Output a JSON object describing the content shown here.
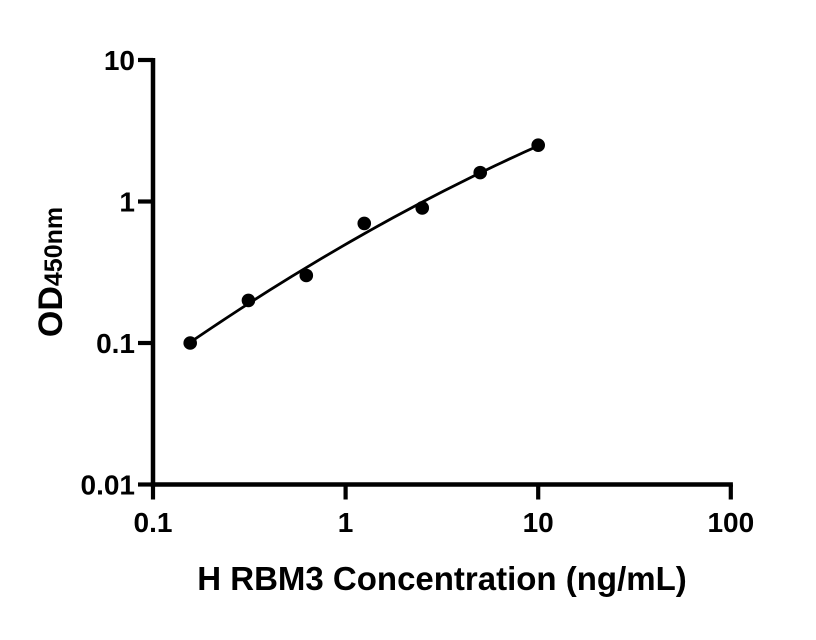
{
  "figure": {
    "background": "#ffffff"
  },
  "chart_data": {
    "type": "scatter",
    "title": "",
    "xlabel": "H RBM3 Concentration (ng/mL)",
    "ylabel": "OD450nm",
    "ylabel_main": "OD",
    "ylabel_sub": "450nm",
    "x_scale": "log",
    "y_scale": "log",
    "xlim": [
      0.1,
      100
    ],
    "ylim": [
      0.01,
      10
    ],
    "grid": false,
    "legend": null,
    "x_ticks": [
      {
        "value": 0.1,
        "label": "0.1"
      },
      {
        "value": 1,
        "label": "1"
      },
      {
        "value": 10,
        "label": "10"
      },
      {
        "value": 100,
        "label": "100"
      }
    ],
    "y_ticks": [
      {
        "value": 0.01,
        "label": "0.01"
      },
      {
        "value": 0.1,
        "label": "0.1"
      },
      {
        "value": 1,
        "label": "1"
      },
      {
        "value": 10,
        "label": "10"
      }
    ],
    "points": [
      {
        "x": 0.156,
        "y": 0.1
      },
      {
        "x": 0.313,
        "y": 0.2
      },
      {
        "x": 0.625,
        "y": 0.3
      },
      {
        "x": 1.25,
        "y": 0.7
      },
      {
        "x": 2.5,
        "y": 0.9
      },
      {
        "x": 5,
        "y": 1.6
      },
      {
        "x": 10,
        "y": 2.5
      }
    ],
    "fit": {
      "type": "quadratic-loglog"
    },
    "colors": {
      "axis": "#000000",
      "text": "#000000",
      "marker": "#000000",
      "fit_line": "#000000"
    }
  }
}
